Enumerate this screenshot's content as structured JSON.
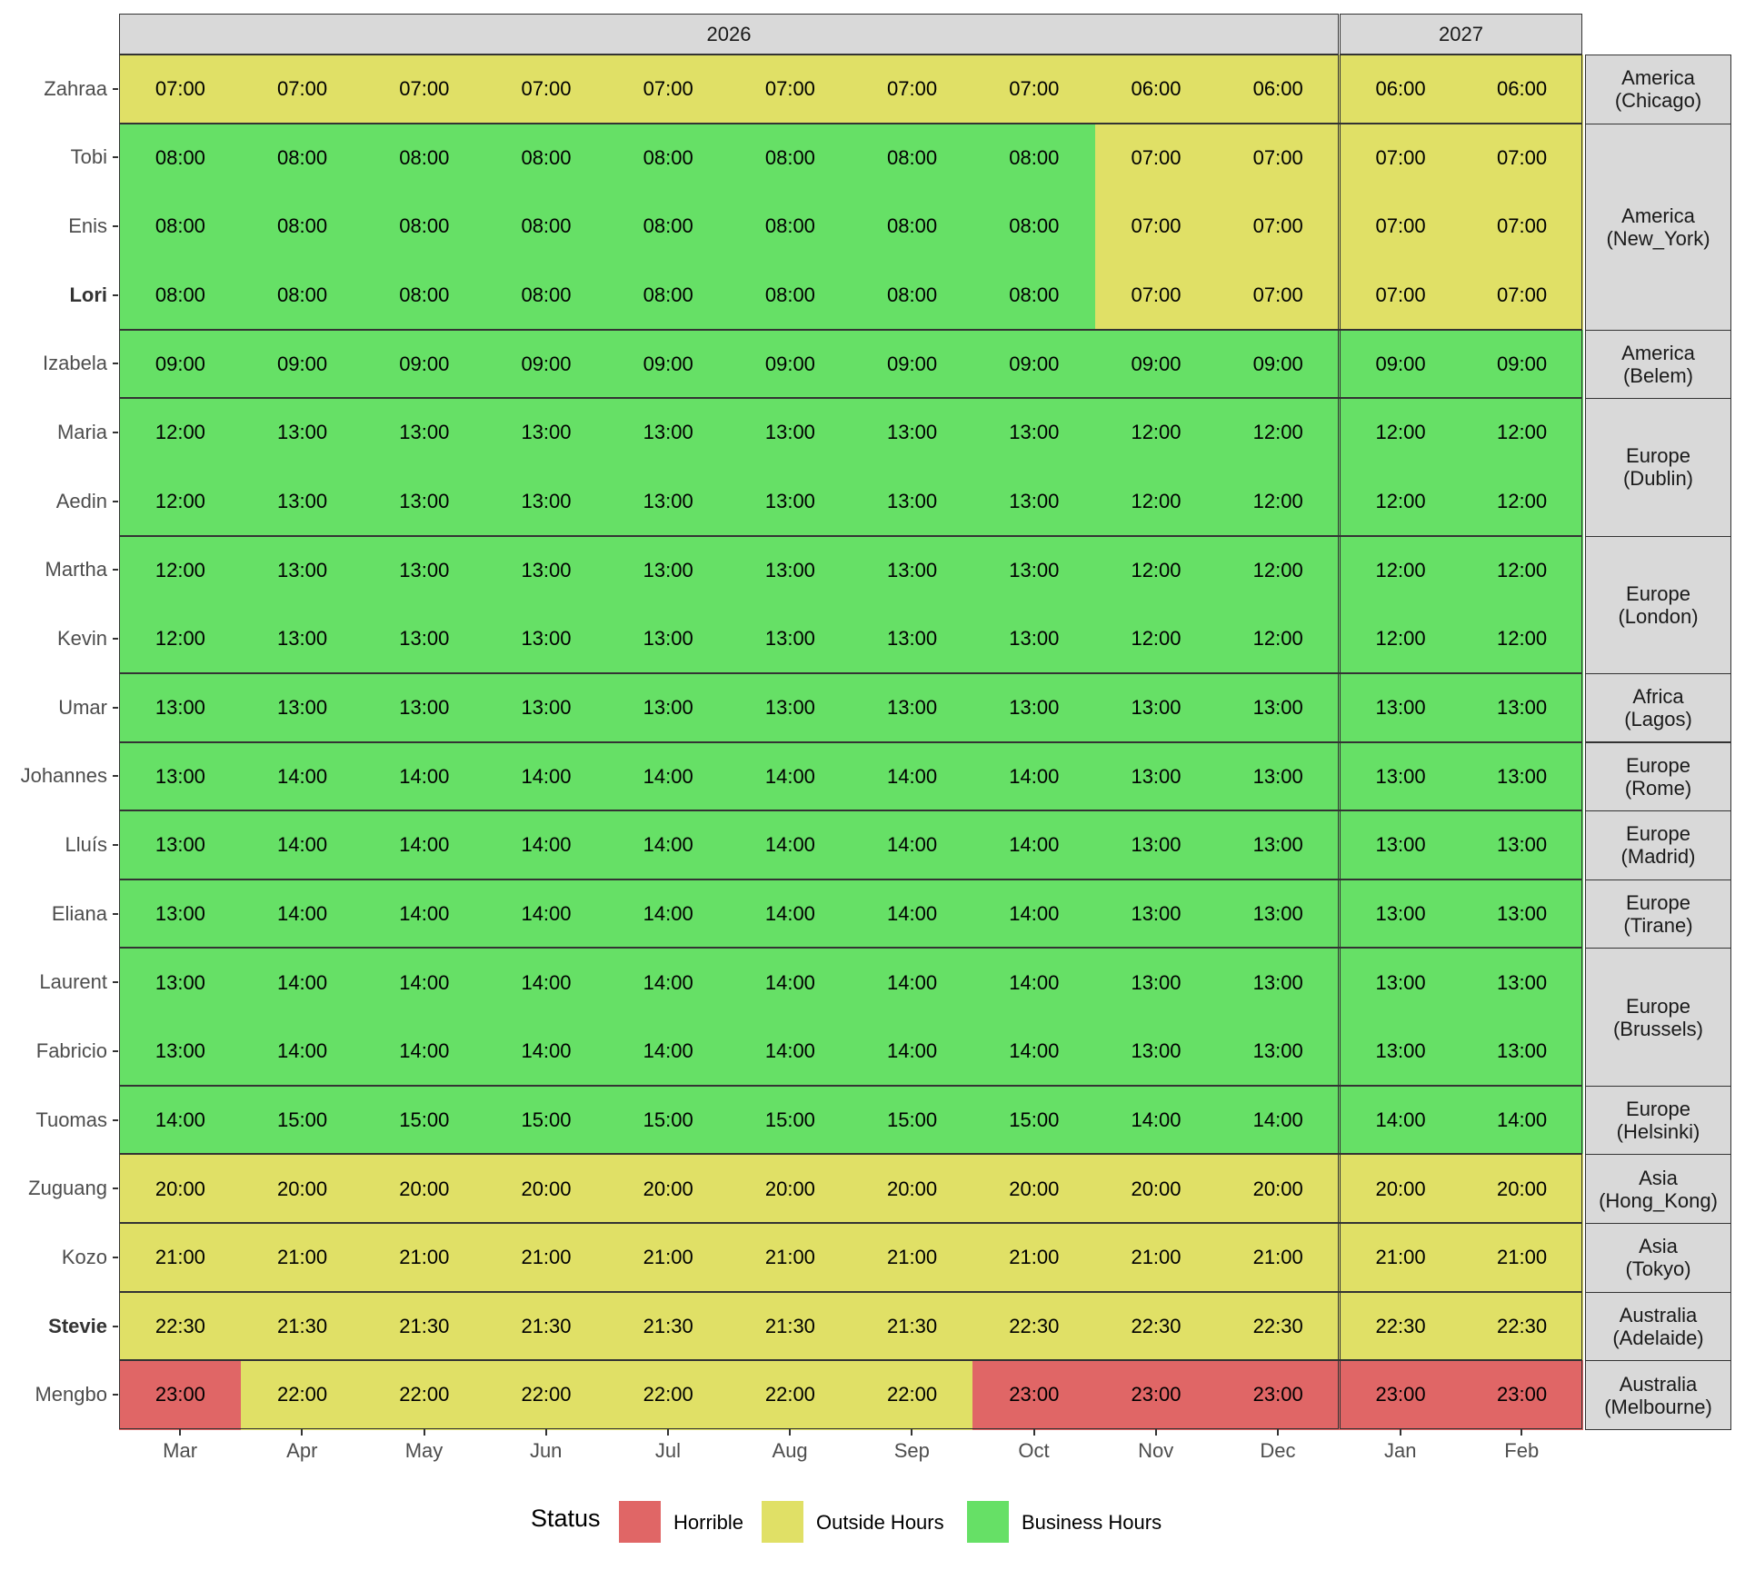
{
  "chart_data": {
    "type": "heatmap",
    "title": "",
    "xlabel": "",
    "ylabel": "",
    "facets_x": [
      {
        "label": "2026",
        "months": [
          "Mar",
          "Apr",
          "May",
          "Jun",
          "Jul",
          "Aug",
          "Sep",
          "Oct",
          "Nov",
          "Dec"
        ]
      },
      {
        "label": "2027",
        "months": [
          "Jan",
          "Feb"
        ]
      }
    ],
    "months": [
      "Mar",
      "Apr",
      "May",
      "Jun",
      "Jul",
      "Aug",
      "Sep",
      "Oct",
      "Nov",
      "Dec",
      "Jan",
      "Feb"
    ],
    "legend": {
      "title": "Status",
      "position": "bottom",
      "entries": [
        {
          "key": "H",
          "label": "Horrible",
          "color": "#E06666"
        },
        {
          "key": "O",
          "label": "Outside Hours",
          "color": "#E0E066"
        },
        {
          "key": "B",
          "label": "Business Hours",
          "color": "#66E066"
        }
      ]
    },
    "groups": [
      {
        "timezone": [
          "America",
          "(Chicago)"
        ],
        "rows": [
          {
            "name": "Zahraa",
            "bold": false,
            "values": [
              "07:00",
              "07:00",
              "07:00",
              "07:00",
              "07:00",
              "07:00",
              "07:00",
              "07:00",
              "06:00",
              "06:00",
              "06:00",
              "06:00"
            ],
            "status": [
              "O",
              "O",
              "O",
              "O",
              "O",
              "O",
              "O",
              "O",
              "O",
              "O",
              "O",
              "O"
            ]
          }
        ]
      },
      {
        "timezone": [
          "America",
          "(New_York)"
        ],
        "rows": [
          {
            "name": "Tobi",
            "bold": false,
            "values": [
              "08:00",
              "08:00",
              "08:00",
              "08:00",
              "08:00",
              "08:00",
              "08:00",
              "08:00",
              "07:00",
              "07:00",
              "07:00",
              "07:00"
            ],
            "status": [
              "B",
              "B",
              "B",
              "B",
              "B",
              "B",
              "B",
              "B",
              "O",
              "O",
              "O",
              "O"
            ]
          },
          {
            "name": "Enis",
            "bold": false,
            "values": [
              "08:00",
              "08:00",
              "08:00",
              "08:00",
              "08:00",
              "08:00",
              "08:00",
              "08:00",
              "07:00",
              "07:00",
              "07:00",
              "07:00"
            ],
            "status": [
              "B",
              "B",
              "B",
              "B",
              "B",
              "B",
              "B",
              "B",
              "O",
              "O",
              "O",
              "O"
            ]
          },
          {
            "name": "Lori",
            "bold": true,
            "values": [
              "08:00",
              "08:00",
              "08:00",
              "08:00",
              "08:00",
              "08:00",
              "08:00",
              "08:00",
              "07:00",
              "07:00",
              "07:00",
              "07:00"
            ],
            "status": [
              "B",
              "B",
              "B",
              "B",
              "B",
              "B",
              "B",
              "B",
              "O",
              "O",
              "O",
              "O"
            ]
          }
        ]
      },
      {
        "timezone": [
          "America",
          "(Belem)"
        ],
        "rows": [
          {
            "name": "Izabela",
            "bold": false,
            "values": [
              "09:00",
              "09:00",
              "09:00",
              "09:00",
              "09:00",
              "09:00",
              "09:00",
              "09:00",
              "09:00",
              "09:00",
              "09:00",
              "09:00"
            ],
            "status": [
              "B",
              "B",
              "B",
              "B",
              "B",
              "B",
              "B",
              "B",
              "B",
              "B",
              "B",
              "B"
            ]
          }
        ]
      },
      {
        "timezone": [
          "Europe",
          "(Dublin)"
        ],
        "rows": [
          {
            "name": "Maria",
            "bold": false,
            "values": [
              "12:00",
              "13:00",
              "13:00",
              "13:00",
              "13:00",
              "13:00",
              "13:00",
              "13:00",
              "12:00",
              "12:00",
              "12:00",
              "12:00"
            ],
            "status": [
              "B",
              "B",
              "B",
              "B",
              "B",
              "B",
              "B",
              "B",
              "B",
              "B",
              "B",
              "B"
            ]
          },
          {
            "name": "Aedin",
            "bold": false,
            "values": [
              "12:00",
              "13:00",
              "13:00",
              "13:00",
              "13:00",
              "13:00",
              "13:00",
              "13:00",
              "12:00",
              "12:00",
              "12:00",
              "12:00"
            ],
            "status": [
              "B",
              "B",
              "B",
              "B",
              "B",
              "B",
              "B",
              "B",
              "B",
              "B",
              "B",
              "B"
            ]
          }
        ]
      },
      {
        "timezone": [
          "Europe",
          "(London)"
        ],
        "rows": [
          {
            "name": "Martha",
            "bold": false,
            "values": [
              "12:00",
              "13:00",
              "13:00",
              "13:00",
              "13:00",
              "13:00",
              "13:00",
              "13:00",
              "12:00",
              "12:00",
              "12:00",
              "12:00"
            ],
            "status": [
              "B",
              "B",
              "B",
              "B",
              "B",
              "B",
              "B",
              "B",
              "B",
              "B",
              "B",
              "B"
            ]
          },
          {
            "name": "Kevin",
            "bold": false,
            "values": [
              "12:00",
              "13:00",
              "13:00",
              "13:00",
              "13:00",
              "13:00",
              "13:00",
              "13:00",
              "12:00",
              "12:00",
              "12:00",
              "12:00"
            ],
            "status": [
              "B",
              "B",
              "B",
              "B",
              "B",
              "B",
              "B",
              "B",
              "B",
              "B",
              "B",
              "B"
            ]
          }
        ]
      },
      {
        "timezone": [
          "Africa",
          "(Lagos)"
        ],
        "rows": [
          {
            "name": "Umar",
            "bold": false,
            "values": [
              "13:00",
              "13:00",
              "13:00",
              "13:00",
              "13:00",
              "13:00",
              "13:00",
              "13:00",
              "13:00",
              "13:00",
              "13:00",
              "13:00"
            ],
            "status": [
              "B",
              "B",
              "B",
              "B",
              "B",
              "B",
              "B",
              "B",
              "B",
              "B",
              "B",
              "B"
            ]
          }
        ]
      },
      {
        "timezone": [
          "Europe",
          "(Rome)"
        ],
        "rows": [
          {
            "name": "Johannes",
            "bold": false,
            "values": [
              "13:00",
              "14:00",
              "14:00",
              "14:00",
              "14:00",
              "14:00",
              "14:00",
              "14:00",
              "13:00",
              "13:00",
              "13:00",
              "13:00"
            ],
            "status": [
              "B",
              "B",
              "B",
              "B",
              "B",
              "B",
              "B",
              "B",
              "B",
              "B",
              "B",
              "B"
            ]
          }
        ]
      },
      {
        "timezone": [
          "Europe",
          "(Madrid)"
        ],
        "rows": [
          {
            "name": "Lluís",
            "bold": false,
            "values": [
              "13:00",
              "14:00",
              "14:00",
              "14:00",
              "14:00",
              "14:00",
              "14:00",
              "14:00",
              "13:00",
              "13:00",
              "13:00",
              "13:00"
            ],
            "status": [
              "B",
              "B",
              "B",
              "B",
              "B",
              "B",
              "B",
              "B",
              "B",
              "B",
              "B",
              "B"
            ]
          }
        ]
      },
      {
        "timezone": [
          "Europe",
          "(Tirane)"
        ],
        "rows": [
          {
            "name": "Eliana",
            "bold": false,
            "values": [
              "13:00",
              "14:00",
              "14:00",
              "14:00",
              "14:00",
              "14:00",
              "14:00",
              "14:00",
              "13:00",
              "13:00",
              "13:00",
              "13:00"
            ],
            "status": [
              "B",
              "B",
              "B",
              "B",
              "B",
              "B",
              "B",
              "B",
              "B",
              "B",
              "B",
              "B"
            ]
          }
        ]
      },
      {
        "timezone": [
          "Europe",
          "(Brussels)"
        ],
        "rows": [
          {
            "name": "Laurent",
            "bold": false,
            "values": [
              "13:00",
              "14:00",
              "14:00",
              "14:00",
              "14:00",
              "14:00",
              "14:00",
              "14:00",
              "13:00",
              "13:00",
              "13:00",
              "13:00"
            ],
            "status": [
              "B",
              "B",
              "B",
              "B",
              "B",
              "B",
              "B",
              "B",
              "B",
              "B",
              "B",
              "B"
            ]
          },
          {
            "name": "Fabricio",
            "bold": false,
            "values": [
              "13:00",
              "14:00",
              "14:00",
              "14:00",
              "14:00",
              "14:00",
              "14:00",
              "14:00",
              "13:00",
              "13:00",
              "13:00",
              "13:00"
            ],
            "status": [
              "B",
              "B",
              "B",
              "B",
              "B",
              "B",
              "B",
              "B",
              "B",
              "B",
              "B",
              "B"
            ]
          }
        ]
      },
      {
        "timezone": [
          "Europe",
          "(Helsinki)"
        ],
        "rows": [
          {
            "name": "Tuomas",
            "bold": false,
            "values": [
              "14:00",
              "15:00",
              "15:00",
              "15:00",
              "15:00",
              "15:00",
              "15:00",
              "15:00",
              "14:00",
              "14:00",
              "14:00",
              "14:00"
            ],
            "status": [
              "B",
              "B",
              "B",
              "B",
              "B",
              "B",
              "B",
              "B",
              "B",
              "B",
              "B",
              "B"
            ]
          }
        ]
      },
      {
        "timezone": [
          "Asia",
          "(Hong_Kong)"
        ],
        "rows": [
          {
            "name": "Zuguang",
            "bold": false,
            "values": [
              "20:00",
              "20:00",
              "20:00",
              "20:00",
              "20:00",
              "20:00",
              "20:00",
              "20:00",
              "20:00",
              "20:00",
              "20:00",
              "20:00"
            ],
            "status": [
              "O",
              "O",
              "O",
              "O",
              "O",
              "O",
              "O",
              "O",
              "O",
              "O",
              "O",
              "O"
            ]
          }
        ]
      },
      {
        "timezone": [
          "Asia",
          "(Tokyo)"
        ],
        "rows": [
          {
            "name": "Kozo",
            "bold": false,
            "values": [
              "21:00",
              "21:00",
              "21:00",
              "21:00",
              "21:00",
              "21:00",
              "21:00",
              "21:00",
              "21:00",
              "21:00",
              "21:00",
              "21:00"
            ],
            "status": [
              "O",
              "O",
              "O",
              "O",
              "O",
              "O",
              "O",
              "O",
              "O",
              "O",
              "O",
              "O"
            ]
          }
        ]
      },
      {
        "timezone": [
          "Australia",
          "(Adelaide)"
        ],
        "rows": [
          {
            "name": "Stevie",
            "bold": true,
            "values": [
              "22:30",
              "21:30",
              "21:30",
              "21:30",
              "21:30",
              "21:30",
              "21:30",
              "22:30",
              "22:30",
              "22:30",
              "22:30",
              "22:30"
            ],
            "status": [
              "O",
              "O",
              "O",
              "O",
              "O",
              "O",
              "O",
              "O",
              "O",
              "O",
              "O",
              "O"
            ]
          }
        ]
      },
      {
        "timezone": [
          "Australia",
          "(Melbourne)"
        ],
        "rows": [
          {
            "name": "Mengbo",
            "bold": false,
            "values": [
              "23:00",
              "22:00",
              "22:00",
              "22:00",
              "22:00",
              "22:00",
              "22:00",
              "23:00",
              "23:00",
              "23:00",
              "23:00",
              "23:00"
            ],
            "status": [
              "H",
              "O",
              "O",
              "O",
              "O",
              "O",
              "O",
              "H",
              "H",
              "H",
              "H",
              "H"
            ]
          }
        ]
      }
    ]
  }
}
